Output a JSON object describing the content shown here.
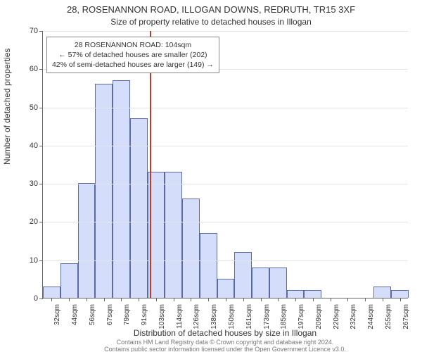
{
  "title_main": "28, ROSENANNON ROAD, ILLOGAN DOWNS, REDRUTH, TR15 3XF",
  "title_sub": "Size of property relative to detached houses in Illogan",
  "y_axis": {
    "label": "Number of detached properties",
    "min": 0,
    "max": 70,
    "step": 10,
    "ticks": [
      0,
      10,
      20,
      30,
      40,
      50,
      60,
      70
    ]
  },
  "x_axis": {
    "label": "Distribution of detached houses by size in Illogan",
    "tick_labels": [
      "32sqm",
      "44sqm",
      "56sqm",
      "67sqm",
      "79sqm",
      "91sqm",
      "103sqm",
      "114sqm",
      "126sqm",
      "138sqm",
      "150sqm",
      "161sqm",
      "173sqm",
      "185sqm",
      "197sqm",
      "209sqm",
      "220sqm",
      "232sqm",
      "244sqm",
      "255sqm",
      "267sqm"
    ]
  },
  "histogram": {
    "type": "histogram",
    "values": [
      3,
      9,
      30,
      56,
      57,
      47,
      33,
      33,
      26,
      17,
      5,
      12,
      8,
      8,
      2,
      2,
      0,
      0,
      0,
      3,
      2
    ],
    "bar_fill": "#d4defa",
    "bar_border": "#5a6aa6",
    "bar_border_width": 1
  },
  "reference_line": {
    "position_index": 6.15,
    "color": "#c0392b",
    "width": 2
  },
  "info_box": {
    "line1": "28 ROSENANNON ROAD: 104sqm",
    "line2": "← 57% of detached houses are smaller (202)",
    "line3": "42% of semi-detached houses are larger (149) →",
    "top_value": 60.5,
    "left_index": 0.2
  },
  "style": {
    "plot_bg": "#ffffff",
    "grid_color": "#e1e4e9",
    "axis_color": "#666666",
    "text_color": "#333333",
    "title_fontsize": 13,
    "subtitle_fontsize": 12,
    "axis_label_fontsize": 12,
    "tick_fontsize": 11
  },
  "footnote": "Contains HM Land Registry data © Crown copyright and database right 2024.\nContains public sector information licensed under the Open Government Licence v3.0."
}
